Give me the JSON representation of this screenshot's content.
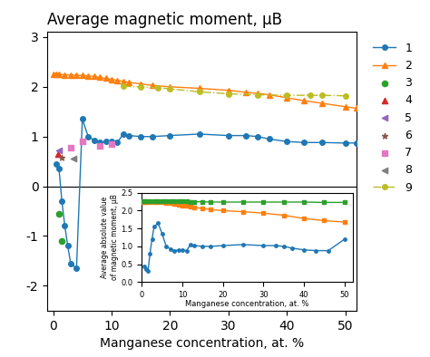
{
  "chart_data": [
    {
      "type": "line",
      "title": "Average magnetic moment, μB",
      "x_label": "Manganese concentration, at. %",
      "xlim": [
        -1,
        52
      ],
      "ylim": [
        -2.5,
        3.1
      ],
      "xticks": [
        0,
        10,
        20,
        30,
        40,
        50
      ],
      "yticks": [
        -2,
        -1,
        0,
        1,
        2,
        3
      ],
      "hline": 0,
      "legend": "upper left",
      "series": [
        {
          "name": "1",
          "type": "line",
          "marker": "o",
          "line_style": "solid",
          "x": [
            0.5,
            1.0,
            1.5,
            2.0,
            2.5,
            3.0,
            4.0,
            5.0,
            6.0,
            7.0,
            8.0,
            9.0,
            10.0,
            11.0,
            12.0,
            13.0,
            15.0,
            17.0,
            20.0,
            25.0,
            30.0,
            33.0,
            35.0,
            37.0,
            40.0,
            43.0,
            46.0,
            50.0,
            52.0
          ],
          "values": [
            0.45,
            0.35,
            -0.3,
            -0.8,
            -1.2,
            -1.55,
            -1.65,
            1.35,
            1.0,
            0.93,
            0.88,
            0.9,
            0.9,
            0.88,
            1.05,
            1.02,
            1.0,
            1.0,
            1.02,
            1.05,
            1.02,
            1.02,
            1.0,
            0.95,
            0.9,
            0.88,
            0.88,
            0.87,
            0.87
          ]
        },
        {
          "name": "2",
          "type": "line",
          "marker": "^",
          "line_style": "solid",
          "x": [
            0.0,
            0.5,
            1.0,
            2.0,
            3.0,
            4.0,
            5.0,
            6.0,
            7.0,
            8.0,
            9.0,
            10.0,
            11.0,
            12.0,
            13.0,
            15.0,
            17.0,
            20.0,
            25.0,
            30.0,
            33.0,
            35.0,
            37.0,
            40.0,
            43.0,
            46.0,
            50.0,
            52.0
          ],
          "values": [
            2.25,
            2.25,
            2.25,
            2.24,
            2.24,
            2.23,
            2.23,
            2.22,
            2.21,
            2.19,
            2.17,
            2.15,
            2.13,
            2.11,
            2.09,
            2.06,
            2.03,
            2.0,
            1.97,
            1.93,
            1.89,
            1.87,
            1.84,
            1.78,
            1.72,
            1.67,
            1.6,
            1.57
          ]
        },
        {
          "name": "3",
          "type": "scatter",
          "marker": "o",
          "x": [
            1.0,
            1.5
          ],
          "values": [
            -0.55,
            -1.1
          ]
        },
        {
          "name": "4",
          "type": "scatter",
          "marker": "^",
          "x": [
            0.8
          ],
          "values": [
            0.65
          ]
        },
        {
          "name": "5",
          "type": "scatter",
          "marker": "<",
          "x": [
            1.0
          ],
          "values": [
            0.72
          ]
        },
        {
          "name": "6",
          "type": "scatter",
          "marker": "*",
          "x": [
            1.5
          ],
          "values": [
            0.58
          ]
        },
        {
          "name": "7",
          "type": "scatter",
          "marker": "s",
          "x": [
            3.0,
            5.0,
            8.0,
            10.0
          ],
          "values": [
            0.78,
            0.9,
            0.82,
            0.85
          ]
        },
        {
          "name": "8",
          "type": "scatter",
          "marker": "<",
          "x": [
            3.5
          ],
          "values": [
            0.55
          ]
        },
        {
          "name": "9",
          "type": "line",
          "marker": "o",
          "line_style": "dashdot",
          "x": [
            12.0,
            15.0,
            18.0,
            20.0,
            25.0,
            30.0,
            35.0,
            40.0,
            44.0,
            46.0,
            50.0
          ],
          "values": [
            2.01,
            2.0,
            1.98,
            1.96,
            1.9,
            1.86,
            1.84,
            1.83,
            1.83,
            1.83,
            1.82
          ]
        }
      ]
    },
    {
      "type": "line",
      "x_label": "Manganese concentration, at. %",
      "y_label": "Average absolute value\nof magnetic moment, μB",
      "xlim": [
        0,
        52
      ],
      "ylim": [
        0,
        2.5
      ],
      "xticks": [
        0,
        10,
        20,
        30,
        40,
        50
      ],
      "yticks": [
        0.0,
        0.5,
        1.0,
        1.5,
        2.0,
        2.5
      ],
      "series": [
        {
          "type": "line",
          "marker": "o",
          "line_style": "solid",
          "x": [
            0.5,
            1.0,
            1.5,
            2.0,
            2.5,
            3.0,
            4.0,
            5.0,
            6.0,
            7.0,
            8.0,
            9.0,
            10.0,
            11.0,
            12.0,
            13.0,
            15.0,
            17.0,
            20.0,
            25.0,
            30.0,
            33.0,
            35.0,
            37.0,
            40.0,
            43.0,
            46.0,
            50.0
          ],
          "values": [
            0.45,
            0.35,
            0.3,
            0.8,
            1.2,
            1.55,
            1.65,
            1.35,
            1.0,
            0.93,
            0.88,
            0.9,
            0.9,
            0.88,
            1.05,
            1.02,
            1.0,
            1.0,
            1.02,
            1.05,
            1.02,
            1.02,
            1.0,
            0.95,
            0.9,
            0.88,
            0.88,
            1.2
          ]
        },
        {
          "type": "line",
          "marker": "s",
          "line_style": "solid",
          "x": [
            0.0,
            0.5,
            1.0,
            2.0,
            3.0,
            4.0,
            5.0,
            6.0,
            7.0,
            8.0,
            9.0,
            10.0,
            11.0,
            12.0,
            13.0,
            15.0,
            17.0,
            20.0,
            25.0,
            30.0,
            35.0,
            40.0,
            45.0,
            50.0
          ],
          "values": [
            2.25,
            2.25,
            2.25,
            2.24,
            2.24,
            2.23,
            2.23,
            2.22,
            2.21,
            2.19,
            2.17,
            2.15,
            2.13,
            2.11,
            2.09,
            2.06,
            2.03,
            2.0,
            1.97,
            1.93,
            1.87,
            1.78,
            1.72,
            1.68
          ]
        },
        {
          "type": "line",
          "marker": "s",
          "line_style": "solid",
          "x": [
            0.0,
            0.5,
            1.0,
            2.0,
            3.0,
            4.0,
            5.0,
            6.0,
            7.0,
            8.0,
            9.0,
            10.0,
            11.0,
            12.0,
            13.0,
            15.0,
            17.0,
            20.0,
            25.0,
            30.0,
            35.0,
            40.0,
            45.0,
            50.0
          ],
          "values": [
            2.27,
            2.27,
            2.27,
            2.27,
            2.27,
            2.27,
            2.27,
            2.27,
            2.27,
            2.27,
            2.27,
            2.26,
            2.26,
            2.25,
            2.25,
            2.25,
            2.24,
            2.24,
            2.24,
            2.24,
            2.24,
            2.24,
            2.23,
            2.23
          ]
        }
      ]
    }
  ]
}
